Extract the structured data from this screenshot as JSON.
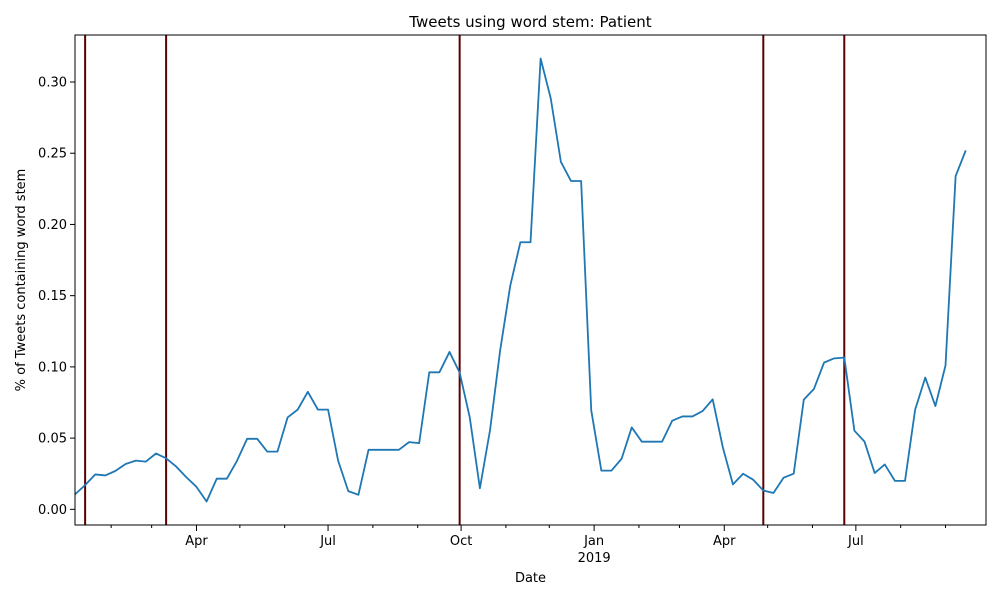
{
  "chart_data": {
    "type": "line",
    "title": "Tweets using word stem: Patient",
    "xlabel": "Date",
    "ylabel": "% of Tweets containing word stem",
    "ylim": [
      -0.011,
      0.333
    ],
    "xlim": [
      "2018-01-07",
      "2019-09-29"
    ],
    "grid": false,
    "y_ticks": [
      0.0,
      0.05,
      0.1,
      0.15,
      0.2,
      0.25,
      0.3
    ],
    "y_tick_labels": [
      "0.00",
      "0.05",
      "0.10",
      "0.15",
      "0.20",
      "0.25",
      "0.30"
    ],
    "x_major_ticks": [
      {
        "date": "2018-04-01",
        "label": "Apr"
      },
      {
        "date": "2018-07-01",
        "label": "Jul"
      },
      {
        "date": "2018-10-01",
        "label": "Oct"
      },
      {
        "date": "2019-01-01",
        "label": "Jan",
        "sublabel": "2019"
      },
      {
        "date": "2019-04-01",
        "label": "Apr"
      },
      {
        "date": "2019-07-01",
        "label": "Jul"
      }
    ],
    "x_minor_ticks": [
      "2018-02-01",
      "2018-03-01",
      "2018-05-01",
      "2018-06-01",
      "2018-08-01",
      "2018-09-01",
      "2018-11-01",
      "2018-12-01",
      "2019-02-01",
      "2019-03-01",
      "2019-05-01",
      "2019-06-01",
      "2019-08-01",
      "2019-09-01"
    ],
    "event_lines": [
      "2018-01-14",
      "2018-03-11",
      "2018-09-30",
      "2019-04-28",
      "2019-06-23"
    ],
    "event_color": "#5c0000",
    "series": [
      {
        "color": "#1f77b4",
        "points": [
          [
            "2018-01-07",
            0.0105
          ],
          [
            "2018-01-14",
            0.017
          ],
          [
            "2018-01-21",
            0.0245
          ],
          [
            "2018-01-28",
            0.0238
          ],
          [
            "2018-02-04",
            0.027
          ],
          [
            "2018-02-11",
            0.0318
          ],
          [
            "2018-02-18",
            0.0342
          ],
          [
            "2018-02-25",
            0.0335
          ],
          [
            "2018-03-04",
            0.0392
          ],
          [
            "2018-03-11",
            0.0358
          ],
          [
            "2018-03-18",
            0.03
          ],
          [
            "2018-03-25",
            0.0225
          ],
          [
            "2018-04-01",
            0.0158
          ],
          [
            "2018-04-08",
            0.0055
          ],
          [
            "2018-04-15",
            0.0215
          ],
          [
            "2018-04-22",
            0.0215
          ],
          [
            "2018-04-29",
            0.034
          ],
          [
            "2018-05-06",
            0.0495
          ],
          [
            "2018-05-13",
            0.0495
          ],
          [
            "2018-05-20",
            0.0405
          ],
          [
            "2018-05-27",
            0.0405
          ],
          [
            "2018-06-03",
            0.0645
          ],
          [
            "2018-06-10",
            0.07
          ],
          [
            "2018-06-17",
            0.0825
          ],
          [
            "2018-06-24",
            0.07
          ],
          [
            "2018-07-01",
            0.07
          ],
          [
            "2018-07-08",
            0.034
          ],
          [
            "2018-07-15",
            0.0128
          ],
          [
            "2018-07-22",
            0.0102
          ],
          [
            "2018-07-29",
            0.0418
          ],
          [
            "2018-08-05",
            0.0418
          ],
          [
            "2018-08-12",
            0.0418
          ],
          [
            "2018-08-19",
            0.0418
          ],
          [
            "2018-08-26",
            0.0472
          ],
          [
            "2018-09-02",
            0.0465
          ],
          [
            "2018-09-09",
            0.0962
          ],
          [
            "2018-09-16",
            0.0962
          ],
          [
            "2018-09-23",
            0.1105
          ],
          [
            "2018-09-30",
            0.096
          ],
          [
            "2018-10-07",
            0.0645
          ],
          [
            "2018-10-14",
            0.0148
          ],
          [
            "2018-10-21",
            0.0555
          ],
          [
            "2018-10-28",
            0.1115
          ],
          [
            "2018-11-04",
            0.157
          ],
          [
            "2018-11-11",
            0.1875
          ],
          [
            "2018-11-18",
            0.1875
          ],
          [
            "2018-11-25",
            0.3165
          ],
          [
            "2018-12-02",
            0.2885
          ],
          [
            "2018-12-09",
            0.244
          ],
          [
            "2018-12-16",
            0.2305
          ],
          [
            "2018-12-23",
            0.2305
          ],
          [
            "2018-12-30",
            0.0695
          ],
          [
            "2019-01-06",
            0.0272
          ],
          [
            "2019-01-13",
            0.0272
          ],
          [
            "2019-01-20",
            0.0355
          ],
          [
            "2019-01-27",
            0.0575
          ],
          [
            "2019-02-03",
            0.0475
          ],
          [
            "2019-02-10",
            0.0475
          ],
          [
            "2019-02-17",
            0.0475
          ],
          [
            "2019-02-24",
            0.0622
          ],
          [
            "2019-03-03",
            0.0652
          ],
          [
            "2019-03-10",
            0.0652
          ],
          [
            "2019-03-17",
            0.069
          ],
          [
            "2019-03-24",
            0.0772
          ],
          [
            "2019-03-31",
            0.0435
          ],
          [
            "2019-04-07",
            0.0175
          ],
          [
            "2019-04-14",
            0.025
          ],
          [
            "2019-04-21",
            0.0208
          ],
          [
            "2019-04-28",
            0.0132
          ],
          [
            "2019-05-05",
            0.0115
          ],
          [
            "2019-05-12",
            0.0222
          ],
          [
            "2019-05-19",
            0.025
          ],
          [
            "2019-05-26",
            0.077
          ],
          [
            "2019-06-02",
            0.0845
          ],
          [
            "2019-06-09",
            0.103
          ],
          [
            "2019-06-16",
            0.106
          ],
          [
            "2019-06-23",
            0.1065
          ],
          [
            "2019-06-30",
            0.0552
          ],
          [
            "2019-07-07",
            0.0475
          ],
          [
            "2019-07-14",
            0.0255
          ],
          [
            "2019-07-21",
            0.0315
          ],
          [
            "2019-07-28",
            0.02
          ],
          [
            "2019-08-04",
            0.02
          ],
          [
            "2019-08-11",
            0.07
          ],
          [
            "2019-08-18",
            0.0925
          ],
          [
            "2019-08-25",
            0.0725
          ],
          [
            "2019-09-01",
            0.101
          ],
          [
            "2019-09-08",
            0.234
          ],
          [
            "2019-09-15",
            0.252
          ]
        ]
      }
    ]
  }
}
